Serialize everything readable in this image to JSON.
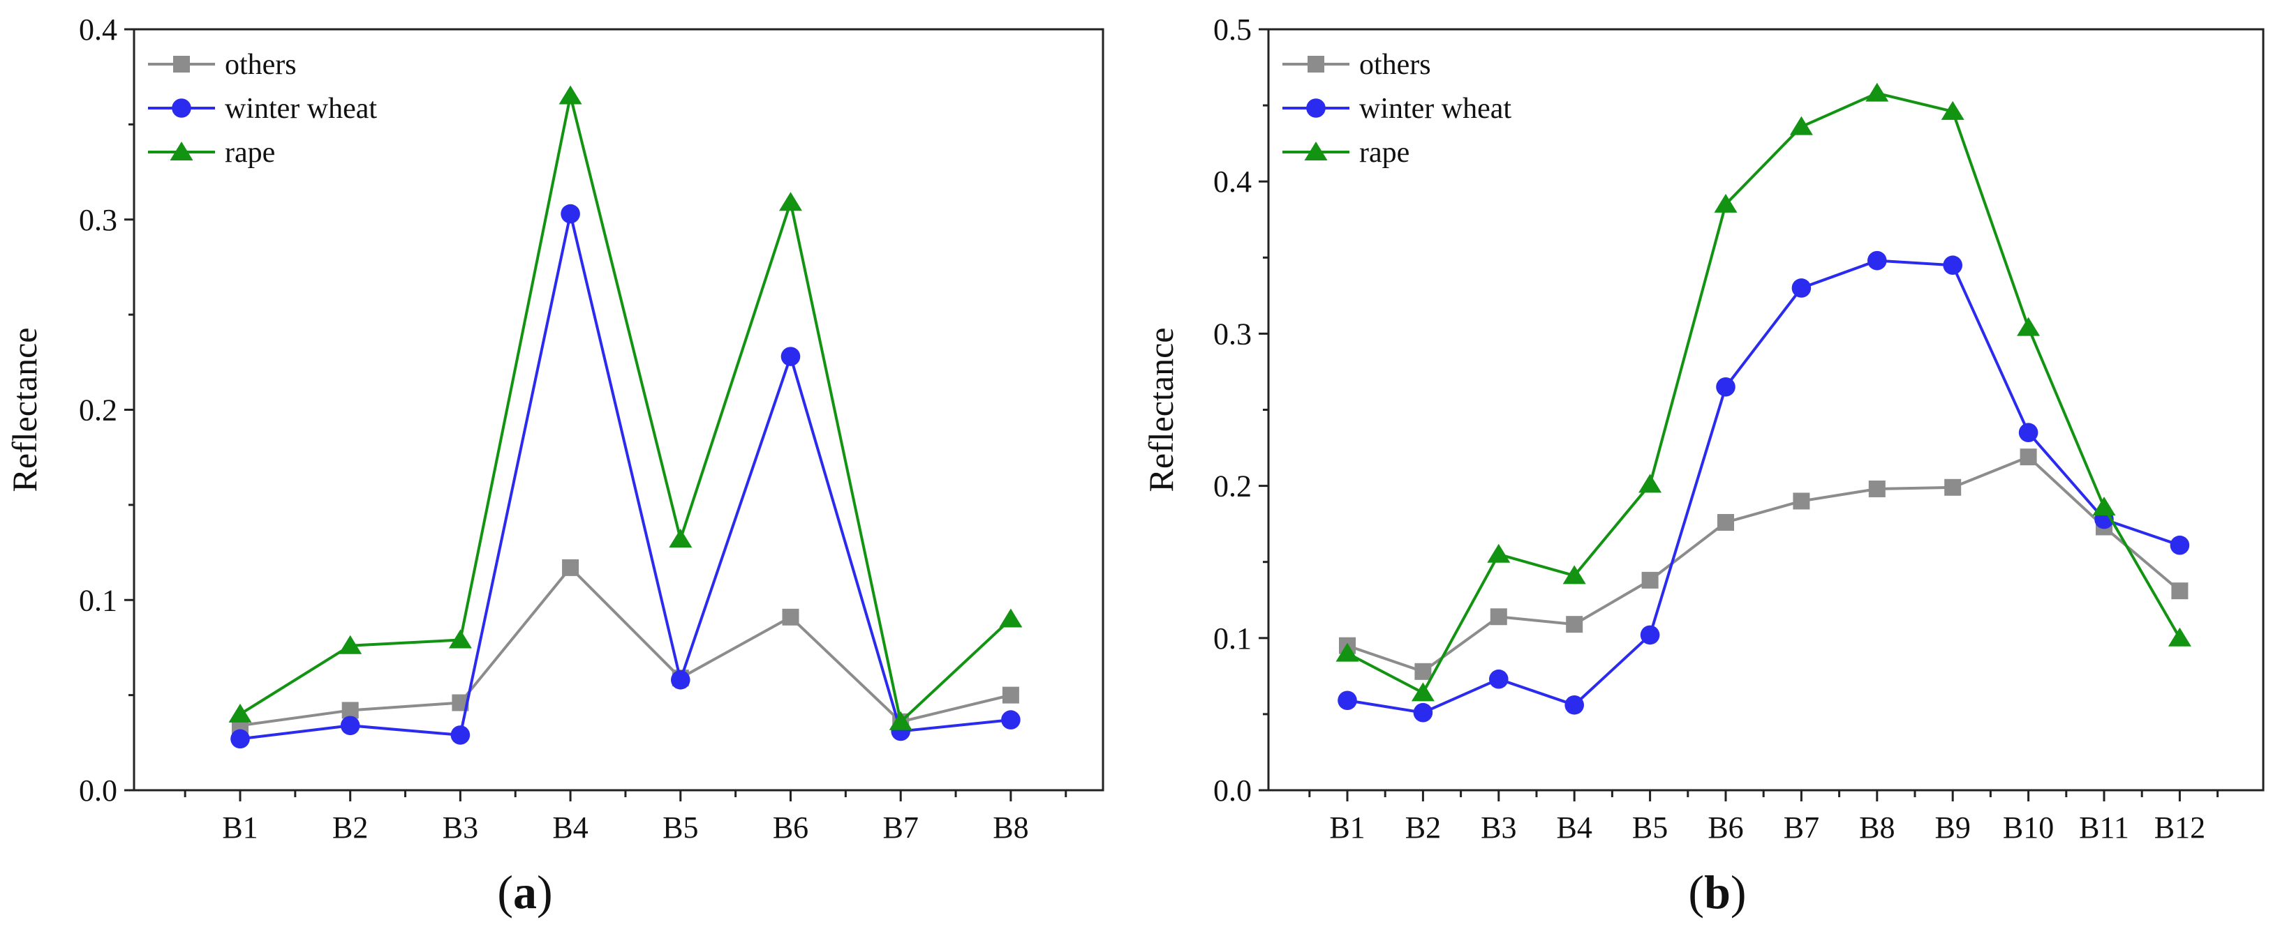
{
  "chart_data": [
    {
      "type": "line",
      "panel_label": "a",
      "title": "",
      "xlabel": "",
      "ylabel": "Reflectance",
      "ylim": [
        0.0,
        0.4
      ],
      "yticks": [
        "0.0",
        "0.1",
        "0.2",
        "0.3",
        "0.4"
      ],
      "categories": [
        "B1",
        "B2",
        "B3",
        "B4",
        "B5",
        "B6",
        "B7",
        "B8"
      ],
      "grid": false,
      "legend_position": "top-left",
      "series": [
        {
          "name": "others",
          "color": "#8c8c8c",
          "marker": "square",
          "values": [
            0.034,
            0.042,
            0.046,
            0.117,
            0.059,
            0.091,
            0.036,
            0.05
          ]
        },
        {
          "name": "winter wheat",
          "color": "#2b2bf0",
          "marker": "circle",
          "values": [
            0.027,
            0.034,
            0.029,
            0.303,
            0.058,
            0.228,
            0.031,
            0.037
          ]
        },
        {
          "name": "rape",
          "color": "#129412",
          "marker": "triangle",
          "values": [
            0.04,
            0.076,
            0.079,
            0.365,
            0.132,
            0.309,
            0.036,
            0.09
          ]
        }
      ]
    },
    {
      "type": "line",
      "panel_label": "b",
      "title": "",
      "xlabel": "",
      "ylabel": "Reflectance",
      "ylim": [
        0.0,
        0.5
      ],
      "yticks": [
        "0.0",
        "0.1",
        "0.2",
        "0.3",
        "0.4",
        "0.5"
      ],
      "categories": [
        "B1",
        "B2",
        "B3",
        "B4",
        "B5",
        "B6",
        "B7",
        "B8",
        "B9",
        "B10",
        "B11",
        "B12"
      ],
      "grid": false,
      "legend_position": "top-left",
      "series": [
        {
          "name": "others",
          "color": "#8c8c8c",
          "marker": "square",
          "values": [
            0.095,
            0.078,
            0.114,
            0.109,
            0.138,
            0.176,
            0.19,
            0.198,
            0.199,
            0.219,
            0.173,
            0.131
          ]
        },
        {
          "name": "winter wheat",
          "color": "#2b2bf0",
          "marker": "circle",
          "values": [
            0.059,
            0.051,
            0.073,
            0.056,
            0.102,
            0.265,
            0.33,
            0.348,
            0.345,
            0.235,
            0.178,
            0.161
          ]
        },
        {
          "name": "rape",
          "color": "#129412",
          "marker": "triangle",
          "values": [
            0.09,
            0.064,
            0.155,
            0.141,
            0.201,
            0.385,
            0.436,
            0.458,
            0.446,
            0.304,
            0.186,
            0.1
          ]
        }
      ]
    }
  ]
}
